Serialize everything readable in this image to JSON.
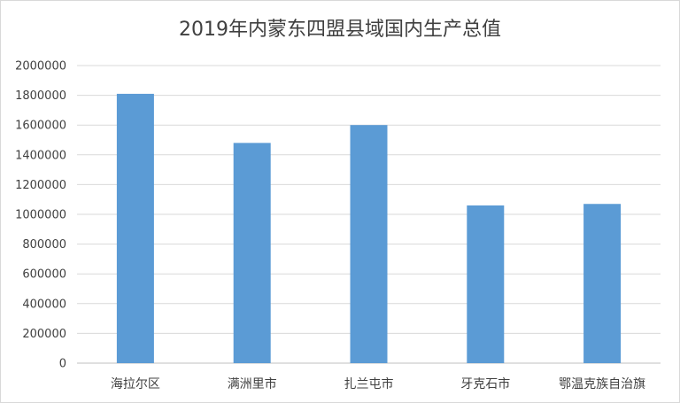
{
  "chart_data": {
    "type": "bar",
    "title": "2019年内蒙东四盟县域国内生产总值",
    "xlabel": "",
    "ylabel": "",
    "categories": [
      "海拉尔区",
      "满洲里市",
      "扎兰屯市",
      "牙克石市",
      "鄂温克族自治旗"
    ],
    "values": [
      1810000,
      1480000,
      1600000,
      1060000,
      1070000
    ],
    "ylim": [
      0,
      2000000
    ],
    "yticks": [
      "0",
      "200000",
      "400000",
      "600000",
      "800000",
      "1000000",
      "1200000",
      "1400000",
      "1600000",
      "1800000",
      "2000000"
    ],
    "grid": true,
    "legend": "none",
    "bar_color": "#5b9bd5"
  }
}
